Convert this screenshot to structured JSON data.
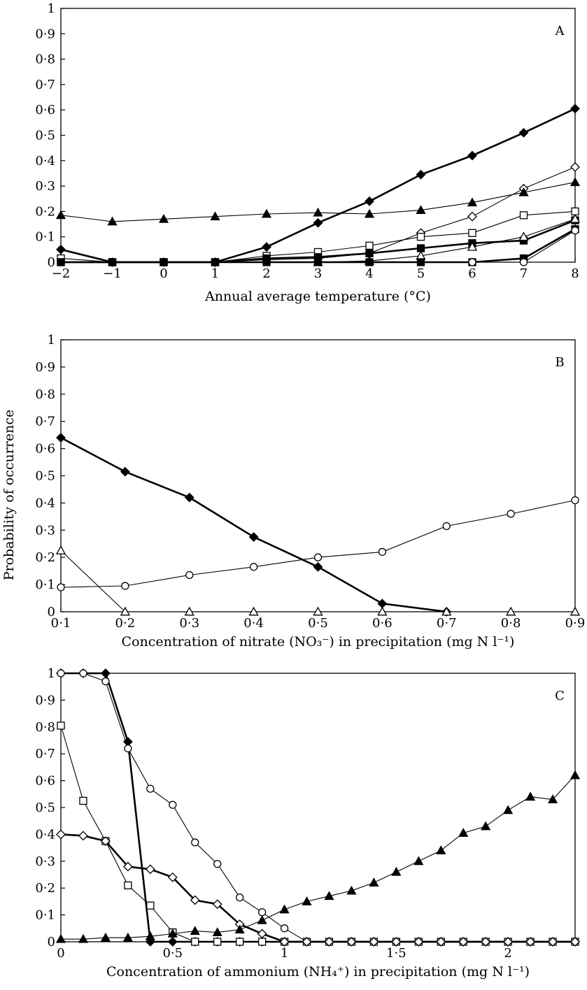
{
  "y_axis_label": "Probability of occurrence",
  "chart_data": [
    {
      "panel": "A",
      "type": "line",
      "xlabel": "Annual average temperature (°C)",
      "xlim": [
        -2,
        8
      ],
      "ylim": [
        0,
        1
      ],
      "x_ticks": [
        -2,
        -1,
        0,
        1,
        2,
        3,
        4,
        5,
        6,
        7,
        8
      ],
      "x_tick_labels": [
        "−2",
        "−1",
        "0",
        "1",
        "2",
        "3",
        "4",
        "5",
        "6",
        "7",
        "8"
      ],
      "y_ticks": [
        0,
        0.1,
        0.2,
        0.3,
        0.4,
        0.5,
        0.6,
        0.7,
        0.8,
        0.9,
        1
      ],
      "y_tick_labels": [
        "0",
        "0·1",
        "0·2",
        "0·3",
        "0·4",
        "0·5",
        "0·6",
        "0·7",
        "0·8",
        "0·9",
        "1"
      ],
      "series": [
        {
          "marker": "filled-diamond",
          "weight": "bold",
          "x": [
            -2,
            -1,
            0,
            1,
            2,
            3,
            4,
            5,
            6,
            7,
            8
          ],
          "y": [
            0.05,
            0,
            0,
            0,
            0.06,
            0.155,
            0.24,
            0.345,
            0.42,
            0.51,
            0.605
          ]
        },
        {
          "marker": "open-diamond",
          "weight": "thin",
          "x": [
            1,
            2,
            3,
            4,
            5,
            6,
            7,
            8
          ],
          "y": [
            0,
            0.01,
            0.015,
            0.035,
            0.115,
            0.18,
            0.29,
            0.375
          ]
        },
        {
          "marker": "filled-triangle",
          "weight": "thin",
          "x": [
            -2,
            -1,
            0,
            1,
            2,
            3,
            4,
            5,
            6,
            7,
            8
          ],
          "y": [
            0.185,
            0.16,
            0.17,
            0.18,
            0.19,
            0.195,
            0.19,
            0.205,
            0.235,
            0.275,
            0.315
          ]
        },
        {
          "marker": "open-square",
          "weight": "thin",
          "x": [
            -2,
            -1,
            0,
            1,
            2,
            3,
            4,
            5,
            6,
            7,
            8
          ],
          "y": [
            0.015,
            0,
            0,
            0,
            0.025,
            0.04,
            0.065,
            0.1,
            0.115,
            0.185,
            0.2
          ]
        },
        {
          "marker": "filled-square-bold",
          "weight": "bold",
          "x": [
            -2,
            -1,
            0,
            1,
            2,
            3,
            4,
            5,
            6,
            7,
            8
          ],
          "y": [
            0,
            0,
            0,
            0,
            0.015,
            0.02,
            0.035,
            0.055,
            0.075,
            0.085,
            0.165
          ]
        },
        {
          "marker": "open-triangle",
          "weight": "thin",
          "x": [
            3,
            4,
            5,
            6,
            7,
            8
          ],
          "y": [
            0,
            0.005,
            0.025,
            0.06,
            0.1,
            0.17
          ]
        },
        {
          "marker": "filled-square",
          "weight": "bold",
          "x": [
            -2,
            -1,
            0,
            1,
            2,
            3,
            4,
            5,
            6,
            7,
            8
          ],
          "y": [
            0,
            0,
            0,
            0,
            0,
            0,
            0,
            0,
            0,
            0.015,
            0.13
          ]
        },
        {
          "marker": "open-circle",
          "weight": "thin",
          "x": [
            6,
            7,
            8
          ],
          "y": [
            0,
            0,
            0.125
          ]
        }
      ]
    },
    {
      "panel": "B",
      "type": "line",
      "xlabel": "Concentration of nitrate (NO₃⁻) in precipitation (mg N l⁻¹)",
      "xlim": [
        0.1,
        0.9
      ],
      "ylim": [
        0,
        1
      ],
      "x_ticks": [
        0.1,
        0.2,
        0.3,
        0.4,
        0.5,
        0.6,
        0.7,
        0.8,
        0.9
      ],
      "x_tick_labels": [
        "0·1",
        "0·2",
        "0·3",
        "0·4",
        "0·5",
        "0·6",
        "0·7",
        "0·8",
        "0·9"
      ],
      "y_ticks": [
        0,
        0.1,
        0.2,
        0.3,
        0.4,
        0.5,
        0.6,
        0.7,
        0.8,
        0.9,
        1
      ],
      "y_tick_labels": [
        "0",
        "0·1",
        "0·2",
        "0·3",
        "0·4",
        "0·5",
        "0·6",
        "0·7",
        "0·8",
        "0·9",
        "1"
      ],
      "series": [
        {
          "marker": "filled-diamond",
          "weight": "bold",
          "x": [
            0.1,
            0.2,
            0.3,
            0.4,
            0.5,
            0.6,
            0.7
          ],
          "y": [
            0.64,
            0.515,
            0.42,
            0.275,
            0.165,
            0.03,
            0
          ]
        },
        {
          "marker": "open-circle",
          "weight": "thin",
          "x": [
            0.1,
            0.2,
            0.3,
            0.4,
            0.5,
            0.6,
            0.7,
            0.8,
            0.9
          ],
          "y": [
            0.09,
            0.095,
            0.135,
            0.165,
            0.2,
            0.22,
            0.315,
            0.36,
            0.41
          ]
        },
        {
          "marker": "open-triangle",
          "weight": "thin",
          "x": [
            0.1,
            0.2,
            0.3,
            0.4,
            0.5,
            0.6,
            0.7,
            0.8,
            0.9
          ],
          "y": [
            0.225,
            0,
            0,
            0,
            0,
            0,
            0,
            0,
            0
          ]
        }
      ]
    },
    {
      "panel": "C",
      "type": "line",
      "xlabel": "Concentration of ammonium (NH₄⁺) in precipitation (mg N l⁻¹)",
      "xlim": [
        0,
        2.3
      ],
      "ylim": [
        0,
        1
      ],
      "x_ticks": [
        0,
        0.5,
        1,
        1.5,
        2
      ],
      "x_tick_labels": [
        "0",
        "0·5",
        "1",
        "1·5",
        "2"
      ],
      "y_ticks": [
        0,
        0.1,
        0.2,
        0.3,
        0.4,
        0.5,
        0.6,
        0.7,
        0.8,
        0.9,
        1
      ],
      "y_tick_labels": [
        "0",
        "0·1",
        "0·2",
        "0·3",
        "0·4",
        "0·5",
        "0·6",
        "0·7",
        "0·8",
        "0·9",
        "1"
      ],
      "series": [
        {
          "marker": "filled-diamond",
          "weight": "bold",
          "x": [
            0,
            0.1,
            0.2,
            0.3,
            0.4,
            0.5,
            0.6,
            0.7,
            0.8,
            0.9,
            1,
            1.1,
            1.2,
            1.3,
            1.4,
            1.5,
            1.6,
            1.7,
            1.8,
            1.9,
            2,
            2.1,
            2.2,
            2.3
          ],
          "y": [
            1,
            1,
            1,
            0.745,
            0,
            0,
            0,
            0,
            0,
            0,
            0,
            0,
            0,
            0,
            0,
            0,
            0,
            0,
            0,
            0,
            0,
            0,
            0,
            0
          ]
        },
        {
          "marker": "open-circle",
          "weight": "thin",
          "x": [
            0,
            0.1,
            0.2,
            0.3,
            0.4,
            0.5,
            0.6,
            0.7,
            0.8,
            0.9,
            1,
            1.1,
            1.2,
            1.3,
            1.4,
            1.5,
            1.6,
            1.7,
            1.8,
            1.9,
            2,
            2.1,
            2.2,
            2.3
          ],
          "y": [
            1,
            1,
            0.97,
            0.72,
            0.57,
            0.51,
            0.37,
            0.29,
            0.165,
            0.11,
            0.05,
            0,
            0,
            0,
            0,
            0,
            0,
            0,
            0,
            0,
            0,
            0,
            0,
            0
          ]
        },
        {
          "marker": "open-square",
          "weight": "thin",
          "x": [
            0,
            0.1,
            0.2,
            0.3,
            0.4,
            0.5,
            0.6,
            0.7,
            0.8,
            0.9,
            1,
            1.1,
            1.2,
            1.3,
            1.4,
            1.5,
            1.6,
            1.7,
            1.8,
            1.9,
            2,
            2.1,
            2.2,
            2.3
          ],
          "y": [
            0.805,
            0.525,
            0.375,
            0.21,
            0.135,
            0.035,
            0,
            0,
            0,
            0,
            0,
            0,
            0,
            0,
            0,
            0,
            0,
            0,
            0,
            0,
            0,
            0,
            0,
            0
          ]
        },
        {
          "marker": "open-diamond",
          "weight": "bold",
          "x": [
            0,
            0.1,
            0.2,
            0.3,
            0.4,
            0.5,
            0.6,
            0.7,
            0.8,
            0.9,
            1,
            1.1,
            1.2,
            1.3,
            1.4,
            1.5,
            1.6,
            1.7,
            1.8,
            1.9,
            2,
            2.1,
            2.2,
            2.3
          ],
          "y": [
            0.4,
            0.395,
            0.375,
            0.28,
            0.27,
            0.24,
            0.155,
            0.14,
            0.065,
            0.03,
            0,
            0,
            0,
            0,
            0,
            0,
            0,
            0,
            0,
            0,
            0,
            0,
            0,
            0
          ]
        },
        {
          "marker": "filled-triangle",
          "weight": "thin",
          "x": [
            0,
            0.1,
            0.2,
            0.3,
            0.4,
            0.5,
            0.6,
            0.7,
            0.8,
            0.9,
            1,
            1.1,
            1.2,
            1.3,
            1.4,
            1.5,
            1.6,
            1.7,
            1.8,
            1.9,
            2,
            2.1,
            2.2,
            2.3
          ],
          "y": [
            0.01,
            0.01,
            0.015,
            0.015,
            0.02,
            0.03,
            0.04,
            0.035,
            0.045,
            0.08,
            0.12,
            0.15,
            0.17,
            0.19,
            0.22,
            0.26,
            0.3,
            0.34,
            0.405,
            0.43,
            0.49,
            0.54,
            0.53,
            0.62
          ]
        }
      ]
    }
  ]
}
